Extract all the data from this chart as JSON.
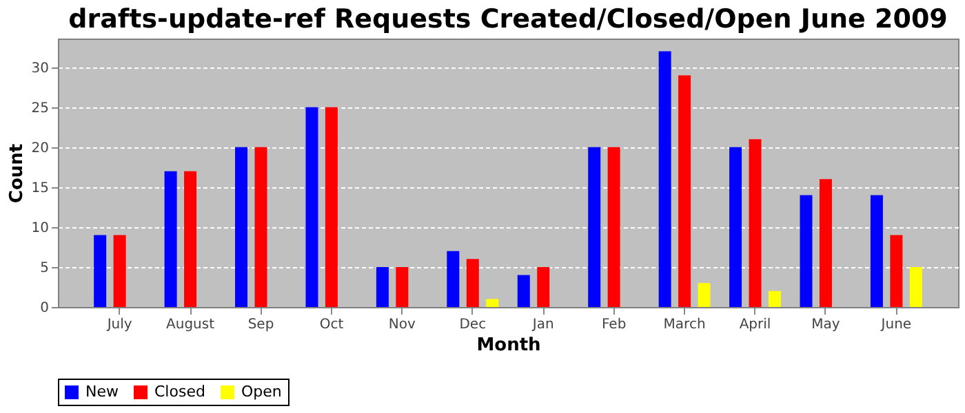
{
  "chart_data": {
    "type": "bar",
    "title": "drafts-update-ref Requests Created/Closed/Open June 2009",
    "xlabel": "Month",
    "ylabel": "Count",
    "categories": [
      "July",
      "August",
      "Sep",
      "Oct",
      "Nov",
      "Dec",
      "Jan",
      "Feb",
      "March",
      "April",
      "May",
      "June"
    ],
    "series": [
      {
        "name": "New",
        "color": "#0000ff",
        "values": [
          9,
          17,
          20,
          25,
          5,
          7,
          4,
          20,
          32,
          20,
          14,
          14
        ]
      },
      {
        "name": "Closed",
        "color": "#ff0000",
        "values": [
          9,
          17,
          20,
          25,
          5,
          6,
          5,
          20,
          29,
          21,
          16,
          9
        ]
      },
      {
        "name": "Open",
        "color": "#ffff00",
        "values": [
          0,
          0,
          0,
          0,
          0,
          1,
          0,
          0,
          3,
          2,
          0,
          5
        ]
      }
    ],
    "ylim": [
      0,
      33.6
    ],
    "yticks": [
      0,
      5,
      10,
      15,
      20,
      25,
      30
    ],
    "grid": "y",
    "legend": "bottom"
  }
}
